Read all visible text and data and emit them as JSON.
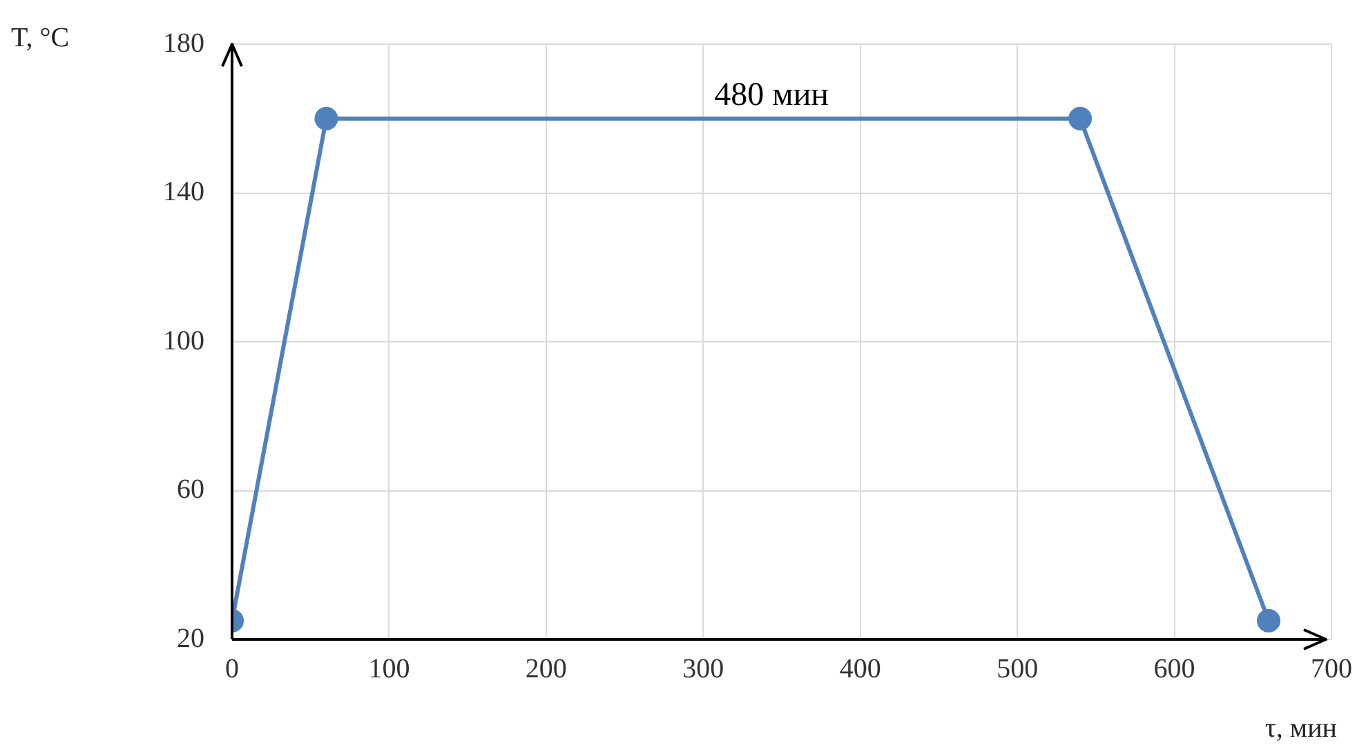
{
  "chart_data": {
    "type": "line",
    "xlabel": "τ, мин",
    "ylabel": "T, °C",
    "x": [
      0,
      60,
      540,
      660
    ],
    "series": [
      {
        "color": "#4f81bd",
        "values": [
          25,
          160,
          160,
          25
        ]
      }
    ],
    "xlim": [
      0,
      700
    ],
    "xticks": [
      0,
      100,
      200,
      300,
      400,
      500,
      600,
      700
    ],
    "ylim": [
      20,
      180
    ],
    "yticks": [
      20,
      60,
      100,
      140,
      180
    ],
    "grid": true,
    "legend": false,
    "marker": "circle",
    "line_style": "solid",
    "annotations": [
      {
        "text": "480 мин",
        "x": 300,
        "y": 160
      }
    ]
  }
}
